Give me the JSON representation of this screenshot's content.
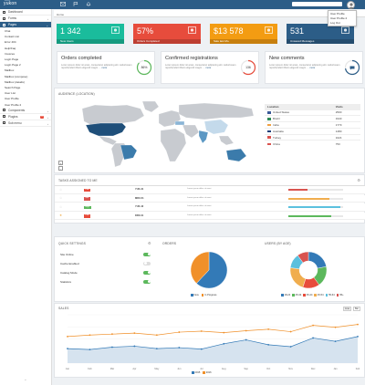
{
  "app": {
    "logo": "yukon",
    "logo_sub": "admin"
  },
  "topbar": {
    "icons": [
      {
        "name": "envelope-icon",
        "badge": ""
      },
      {
        "name": "flag-icon",
        "badge": ""
      },
      {
        "name": "bell-icon",
        "badge": ""
      }
    ],
    "user_menu": [
      "User Profile",
      "User Profile 2",
      "Log Out"
    ]
  },
  "breadcrumb": "Home",
  "sidebar": {
    "items": [
      {
        "label": "Dashboard",
        "icon": "dashboard-icon",
        "chevron": false
      },
      {
        "label": "Forms",
        "icon": "forms-icon",
        "chevron": true
      },
      {
        "label": "Pages",
        "icon": "pages-icon",
        "chevron": true,
        "active": true
      }
    ],
    "subitems": [
      "Chat",
      "Contact List",
      "Error 404",
      "Help/Faq",
      "Invoices",
      "Login Page",
      "Login Page 2",
      "Mailbox",
      "Mailbox (compose)",
      "Mailbox (details)",
      "Search Page",
      "User List",
      "User Profile",
      "User Profile 2"
    ],
    "bottom_items": [
      {
        "label": "Components",
        "icon": "components-icon",
        "chevron": true,
        "badge": ""
      },
      {
        "label": "Plugins",
        "icon": "plugins-icon",
        "chevron": true,
        "badge": "12"
      },
      {
        "label": "Sub menu",
        "icon": "submenu-icon",
        "chevron": true,
        "badge": ""
      }
    ],
    "footer": "«"
  },
  "stats": [
    {
      "value": "1 342",
      "label": "New Users",
      "icon": "users-icon",
      "color": "#1abc9c"
    },
    {
      "value": "57%",
      "label": "Orders Completed",
      "icon": "chart-icon",
      "color": "#e74c3c"
    },
    {
      "value": "$13 578",
      "label": "Sale last Mo.",
      "icon": "dollar-icon",
      "color": "#f39c12"
    },
    {
      "value": "531",
      "label": "Unsaved Messages",
      "icon": "envelope-icon",
      "color": "#2c5d87"
    }
  ],
  "kpis": [
    {
      "title": "Orders completed",
      "text": "Lorem ipsum dolor sit amet, consectetur adipiscing elit. Laboriosam reprehenderit libero eligendi magni ....",
      "more": "more",
      "ring_value": "86%",
      "ring_fraction": 0.86,
      "ring_color": "#5cb85c"
    },
    {
      "title": "Confirmed registrations",
      "text": "Lorem ipsum dolor sit amet, consectetur adipiscing elit. Laboriosam reprehenderit libero eligendi magni ....",
      "more": "more",
      "ring_value": "136",
      "ring_fraction": 0.62,
      "ring_color": "#e74c3c"
    },
    {
      "title": "New comments",
      "text": "Lorem ipsum dolor sit amet, consectetur adipiscing elit. Laboriosam reprehenderit libero eligendi magni ....",
      "more": "more",
      "ring_value": "",
      "ring_fraction": 0.72,
      "ring_color": "#2c5d87"
    }
  ],
  "audience": {
    "title": "AUDIENCE (LOCATION)",
    "columns": [
      "Location",
      "Visits"
    ],
    "rows": [
      {
        "location": "United States",
        "visits": "2500",
        "flag": "#3b5998"
      },
      {
        "location": "Brazil",
        "visits": "1940",
        "flag": "#2e8b57"
      },
      {
        "location": "India",
        "visits": "1779",
        "flag": "#f0a040"
      },
      {
        "location": "Australia",
        "visits": "1480",
        "flag": "#1f3f7a"
      },
      {
        "location": "Turkey",
        "visits": "1024",
        "flag": "#d9534f"
      },
      {
        "location": "China",
        "visits": "753",
        "flag": "#d9534f"
      }
    ],
    "zoom_in": "+",
    "zoom_out": "-"
  },
  "tasks": {
    "title": "TASKS ASSIGNED TO ME",
    "rows": [
      {
        "tag": "Low",
        "tag_color": "#e74c3c",
        "id": "YUK-31",
        "desc": "Lorem ipsum dolor sit amet",
        "progress": 0.35,
        "bar_color": "#d9534f",
        "starred": false
      },
      {
        "tag": "Mid",
        "tag_color": "#d9534f",
        "id": "MRX-51",
        "desc": "Lorem ipsum dolor sit amet",
        "progress": 0.75,
        "bar_color": "#f0ad4e",
        "starred": false
      },
      {
        "tag": "High",
        "tag_color": "#5cb85c",
        "id": "YUK-42",
        "desc": "Lorem ipsum dolor sit amet",
        "progress": 0.95,
        "bar_color": "#5bc0de",
        "starred": false
      },
      {
        "tag": "Low",
        "tag_color": "#e74c3c",
        "id": "DRX-01",
        "desc": "Lorem ipsum dolor sit amet",
        "progress": 0.78,
        "bar_color": "#5cb85c",
        "starred": true
      }
    ]
  },
  "quick_settings": {
    "title": "QUICK SETTINGS",
    "items": [
      {
        "label": "Site Online",
        "on": true
      },
      {
        "label": "Cache Enabled",
        "on": false
      },
      {
        "label": "Catalog Mode",
        "on": true
      },
      {
        "label": "Statistics",
        "on": true
      }
    ]
  },
  "orders": {
    "title": "ORDERS",
    "chart_data": {
      "type": "pie",
      "categories": [
        "New",
        "In Progress"
      ],
      "values": [
        62,
        38
      ],
      "colors": [
        "#337ab7",
        "#f0902a"
      ],
      "legend": "bottom"
    }
  },
  "users_age": {
    "title": "USERS (BY AGE)",
    "chart_data": {
      "type": "pie",
      "categories": [
        "18-24",
        "25-34",
        "35-44",
        "45-54",
        "55-64",
        "65+"
      ],
      "values": [
        22,
        18,
        15,
        22,
        13,
        10
      ],
      "colors": [
        "#337ab7",
        "#5cb85c",
        "#e74c3c",
        "#f0ad4e",
        "#5bc0de",
        "#d9534f"
      ],
      "legend": "bottom"
    }
  },
  "sales": {
    "title": "SALES",
    "buttons": [
      "Line",
      "Bar"
    ],
    "chart_data": {
      "type": "line",
      "categories": [
        "Jan",
        "Feb",
        "Mar",
        "Apr",
        "May",
        "Jun",
        "Jul",
        "Aug",
        "Sep",
        "Oct",
        "Nov",
        "Dec",
        "Jan",
        "Feb"
      ],
      "series": [
        {
          "name": "2015",
          "color": "#337ab7",
          "values": [
            30,
            28,
            33,
            35,
            30,
            32,
            29,
            40,
            48,
            38,
            34,
            52,
            45,
            55
          ]
        },
        {
          "name": "2016",
          "color": "#f0902a",
          "values": [
            55,
            58,
            60,
            62,
            58,
            64,
            66,
            63,
            67,
            70,
            65,
            78,
            74,
            80
          ]
        }
      ],
      "ylim": [
        0,
        100
      ],
      "grid": true,
      "legend": "bottom"
    }
  }
}
